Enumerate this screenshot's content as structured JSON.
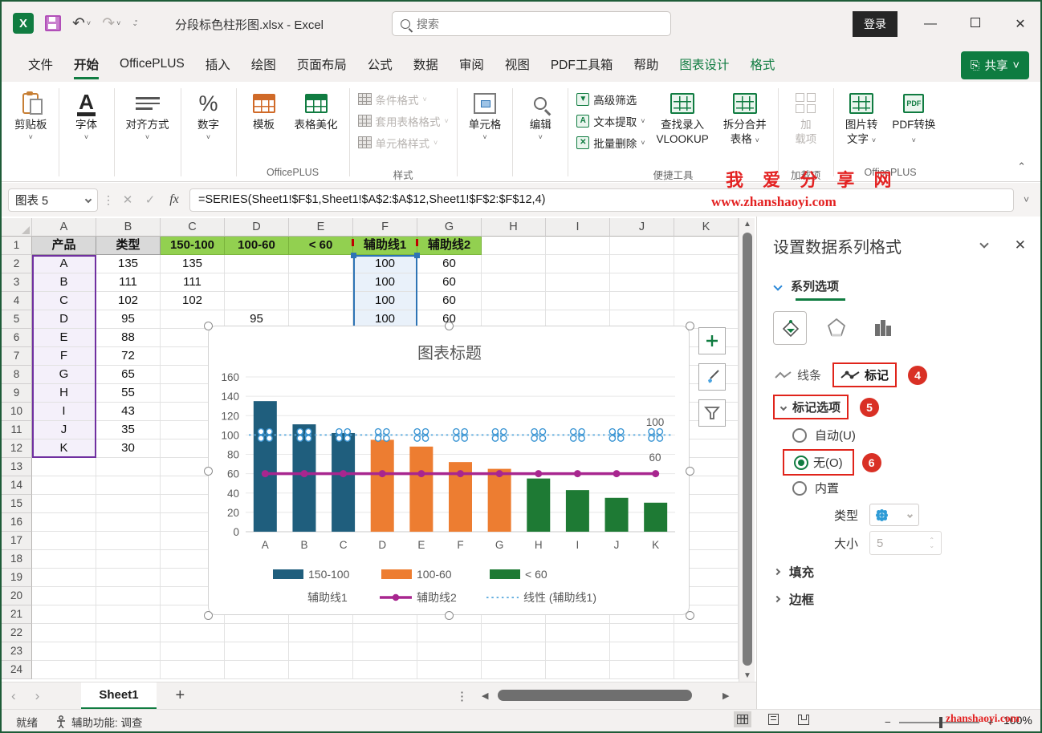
{
  "titlebar": {
    "title": "分段标色柱形图.xlsx  -  Excel",
    "search_placeholder": "搜索",
    "signin": "登录"
  },
  "menubar": {
    "tabs": [
      {
        "label": "文件"
      },
      {
        "label": "开始",
        "active": true
      },
      {
        "label": "OfficePLUS"
      },
      {
        "label": "插入"
      },
      {
        "label": "绘图"
      },
      {
        "label": "页面布局"
      },
      {
        "label": "公式"
      },
      {
        "label": "数据"
      },
      {
        "label": "审阅"
      },
      {
        "label": "视图"
      },
      {
        "label": "PDF工具箱"
      },
      {
        "label": "帮助"
      },
      {
        "label": "图表设计",
        "green": true
      },
      {
        "label": "格式",
        "green": true
      }
    ],
    "share": "共享"
  },
  "ribbon": {
    "groups": [
      {
        "label": "",
        "items": [
          {
            "t": "large",
            "icon": "clipboard",
            "label": "剪贴板",
            "arrow": true,
            "name": "clipboard-button"
          }
        ]
      },
      {
        "label": "",
        "items": [
          {
            "t": "large",
            "icon": "font",
            "label": "字体",
            "arrow": true,
            "name": "font-button"
          }
        ]
      },
      {
        "label": "",
        "items": [
          {
            "t": "large",
            "icon": "align",
            "label": "对齐方式",
            "arrow": true,
            "name": "alignment-button"
          }
        ]
      },
      {
        "label": "",
        "items": [
          {
            "t": "large",
            "icon": "percent",
            "label": "数字",
            "arrow": true,
            "name": "number-button"
          }
        ]
      },
      {
        "label": "OfficePLUS",
        "items": [
          {
            "t": "large",
            "icon": "table-orange",
            "label": "模板",
            "name": "template-button"
          },
          {
            "t": "large",
            "icon": "table-green",
            "label": "表格美化",
            "name": "table-beautify-button"
          }
        ]
      },
      {
        "label": "样式",
        "items": [
          {
            "t": "stack",
            "icon": "grid-gray",
            "label": "条件格式",
            "arrow": true,
            "disabled": true,
            "name": "conditional-format-button"
          },
          {
            "t": "stack",
            "icon": "grid-gray",
            "label": "套用表格格式",
            "arrow": true,
            "disabled": true,
            "name": "format-as-table-button"
          },
          {
            "t": "stack",
            "icon": "grid-gray",
            "label": "单元格样式",
            "arrow": true,
            "disabled": true,
            "name": "cell-styles-button"
          }
        ]
      },
      {
        "label": "",
        "items": [
          {
            "t": "large",
            "icon": "cellgrid",
            "label": "单元格",
            "arrow": true,
            "name": "cells-button"
          }
        ]
      },
      {
        "label": "",
        "items": [
          {
            "t": "large",
            "icon": "magnifier",
            "label": "编辑",
            "arrow": true,
            "name": "editing-button"
          }
        ]
      },
      {
        "label": "便捷工具",
        "items": [
          {
            "t": "stack",
            "icon": "filter-green",
            "label": "高级筛选",
            "name": "advanced-filter-button"
          },
          {
            "t": "stack",
            "icon": "text-green",
            "label": "文本提取",
            "arrow": true,
            "name": "text-extract-button"
          },
          {
            "t": "stack",
            "icon": "delete-green",
            "label": "批量删除",
            "arrow": true,
            "name": "batch-delete-button"
          },
          {
            "t": "large2",
            "icon": "vlookup",
            "label": "查找录入",
            "label2": "VLOOKUP",
            "name": "vlookup-button"
          },
          {
            "t": "large2",
            "icon": "splitmerge",
            "label": "拆分合并",
            "label2": "表格",
            "arrow2": true,
            "name": "split-merge-button"
          }
        ]
      },
      {
        "label": "加载项",
        "items": [
          {
            "t": "large2",
            "icon": "addin",
            "label": "加",
            "label2": "载项",
            "disabled": true,
            "name": "addins-button"
          }
        ]
      },
      {
        "label": "OfficePLUS",
        "items": [
          {
            "t": "large2",
            "icon": "pic2text",
            "label": "图片转",
            "label2": "文字",
            "arrow2": true,
            "name": "image-to-text-button"
          },
          {
            "t": "large2",
            "icon": "pdf",
            "label": "PDF转换",
            "label2": "",
            "arrow2": true,
            "name": "pdf-convert-button"
          }
        ]
      }
    ],
    "watermark": "我 爱 分 享 网"
  },
  "formulabar": {
    "name_box": "图表 5",
    "fx": "fx",
    "formula": "=SERIES(Sheet1!$F$1,Sheet1!$A$2:$A$12,Sheet1!$F$2:$F$12,4)",
    "watermark": "www.zhanshaoyi.com"
  },
  "grid": {
    "columns": [
      "A",
      "B",
      "C",
      "D",
      "E",
      "F",
      "G",
      "H",
      "I",
      "J",
      "K"
    ],
    "row_count": 24,
    "rows": [
      [
        "产品",
        "类型",
        "150-100",
        "100-60",
        "< 60",
        "辅助线1",
        "辅助线2",
        "",
        "",
        "",
        ""
      ],
      [
        "A",
        "135",
        "135",
        "",
        "",
        "100",
        "60",
        "",
        "",
        "",
        ""
      ],
      [
        "B",
        "111",
        "111",
        "",
        "",
        "100",
        "60",
        "",
        "",
        "",
        ""
      ],
      [
        "C",
        "102",
        "102",
        "",
        "",
        "100",
        "60",
        "",
        "",
        "",
        ""
      ],
      [
        "D",
        "95",
        "",
        "95",
        "",
        "100",
        "60",
        "",
        "",
        "",
        ""
      ],
      [
        "E",
        "88",
        "",
        "88",
        "",
        "100",
        "60",
        "",
        "",
        "",
        ""
      ],
      [
        "F",
        "72",
        "",
        "72",
        "",
        "100",
        "60",
        "",
        "",
        "",
        ""
      ],
      [
        "G",
        "65",
        "",
        "65",
        "",
        "100",
        "60",
        "",
        "",
        "",
        ""
      ],
      [
        "H",
        "55",
        "",
        "",
        "55",
        "100",
        "60",
        "",
        "",
        "",
        ""
      ],
      [
        "I",
        "43",
        "",
        "",
        "43",
        "100",
        "60",
        "",
        "",
        "",
        ""
      ],
      [
        "J",
        "35",
        "",
        "",
        "35",
        "100",
        "60",
        "",
        "",
        "",
        ""
      ],
      [
        "K",
        "30",
        "",
        "",
        "30",
        "100",
        "60",
        "",
        "",
        "",
        ""
      ]
    ],
    "selection_colors": {
      "category_range": "#7030a0",
      "series_range": "#2e74b5",
      "series_header_marks": "#c00000"
    }
  },
  "chart_data": {
    "type": "combo",
    "title": "图表标题",
    "categories": [
      "A",
      "B",
      "C",
      "D",
      "E",
      "F",
      "G",
      "H",
      "I",
      "J",
      "K"
    ],
    "series": [
      {
        "name": "150-100",
        "type": "bar",
        "color": "#1f5e7d",
        "values": [
          135,
          111,
          102,
          null,
          null,
          null,
          null,
          null,
          null,
          null,
          null
        ]
      },
      {
        "name": "100-60",
        "type": "bar",
        "color": "#ed7d31",
        "values": [
          null,
          null,
          null,
          95,
          88,
          72,
          65,
          null,
          null,
          null,
          null
        ]
      },
      {
        "name": "< 60",
        "type": "bar",
        "color": "#1e7a34",
        "values": [
          null,
          null,
          null,
          null,
          null,
          null,
          null,
          55,
          43,
          35,
          30
        ]
      },
      {
        "name": "辅助线1",
        "type": "markers-only",
        "color": "#3e97d4",
        "values": [
          100,
          100,
          100,
          100,
          100,
          100,
          100,
          100,
          100,
          100,
          100
        ]
      },
      {
        "name": "辅助线2",
        "type": "line",
        "color": "#a8268f",
        "values": [
          60,
          60,
          60,
          60,
          60,
          60,
          60,
          60,
          60,
          60,
          60
        ]
      },
      {
        "name": "线性 (辅助线1)",
        "type": "trendline-dotted",
        "color": "#56a7dd",
        "values": [
          100,
          100,
          100,
          100,
          100,
          100,
          100,
          100,
          100,
          100,
          100
        ]
      }
    ],
    "ylim": [
      0,
      160
    ],
    "ytick_step": 20,
    "grid": true,
    "legend_position": "bottom",
    "data_labels": [
      {
        "series": "辅助线1",
        "text": "100"
      },
      {
        "series": "辅助线2",
        "text": "60"
      }
    ]
  },
  "panel": {
    "title": "设置数据系列格式",
    "section": "系列选项",
    "subtab_line": "线条",
    "subtab_marker": "标记",
    "badge_marker": "4",
    "marker_options": "标记选项",
    "badge_marker_options": "5",
    "radio_auto": "自动(U)",
    "radio_none": "无(O)",
    "badge_none": "6",
    "radio_builtin": "内置",
    "type_label": "类型",
    "size_label": "大小",
    "size_value": "5",
    "fill_label": "填充",
    "border_label": "边框"
  },
  "tabbar": {
    "sheet": "Sheet1",
    "add": "+"
  },
  "statusbar": {
    "ready": "就绪",
    "accessibility": "辅助功能: 调查",
    "zoom_value": "100%",
    "watermark": "zhanshaoyi.com"
  }
}
